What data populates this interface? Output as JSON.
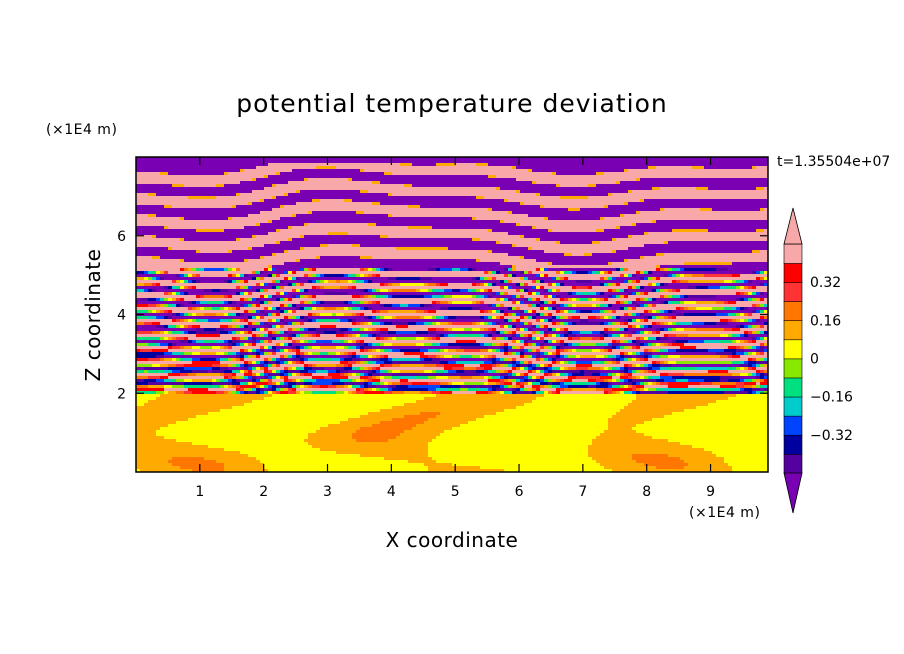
{
  "chart_data": {
    "type": "heatmap",
    "title": "potential temperature deviation",
    "xlabel": "X coordinate",
    "ylabel": "Z coordinate",
    "x_unit": "(×1E4 m)",
    "y_unit": "(×1E4 m)",
    "time_label": "t=1.35504e+07",
    "xlim": [
      0,
      9.9
    ],
    "ylim": [
      0,
      8
    ],
    "x_ticks": [
      1,
      2,
      3,
      4,
      5,
      6,
      7,
      8,
      9
    ],
    "y_ticks": [
      2,
      4,
      6
    ],
    "x_tick_labels": [
      "1",
      "2",
      "3",
      "4",
      "5",
      "6",
      "7",
      "8",
      "9"
    ],
    "y_tick_labels": [
      "2",
      "4",
      "6"
    ],
    "colorbar": {
      "levels": [
        -0.48,
        -0.4,
        -0.32,
        -0.24,
        -0.16,
        -0.08,
        0,
        0.08,
        0.16,
        0.24,
        0.32,
        0.4,
        0.48
      ],
      "colors": [
        "#7a00b4",
        "#5500a0",
        "#0000a0",
        "#0044ff",
        "#00cccc",
        "#00e080",
        "#88e800",
        "#ffff00",
        "#ffaa00",
        "#ff7700",
        "#ff3333",
        "#ff0000",
        "#f8a8a8",
        "#f8a8a8"
      ],
      "tick_values": [
        0.32,
        0.16,
        0,
        -0.16,
        -0.32
      ],
      "tick_labels": [
        "0.32",
        "0.16",
        "0",
        "−0.16",
        "−0.32"
      ],
      "extend": "both"
    },
    "regions": [
      {
        "z_range": [
          0,
          2
        ],
        "description_values": [
          0,
          0.08
        ]
      },
      {
        "z_range": [
          2,
          5.2
        ],
        "description_values": [
          -0.48,
          0.48
        ]
      },
      {
        "z_range": [
          5.2,
          8
        ],
        "description_values": [
          -0.48,
          0.48
        ]
      }
    ]
  }
}
